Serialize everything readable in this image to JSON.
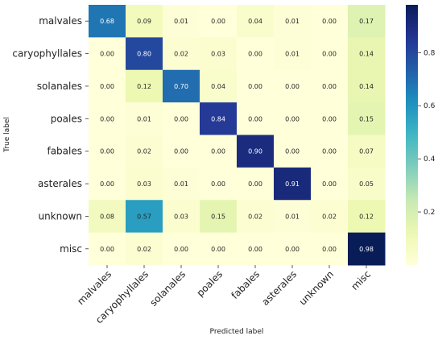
{
  "chart_data": {
    "type": "heatmap",
    "title": "",
    "xlabel": "Predicted label",
    "ylabel": "True label",
    "x_categories": [
      "malvales",
      "caryophyllales",
      "solanales",
      "poales",
      "fabales",
      "asterales",
      "unknown",
      "misc"
    ],
    "y_categories": [
      "malvales",
      "caryophyllales",
      "solanales",
      "poales",
      "fabales",
      "asterales",
      "unknown",
      "misc"
    ],
    "values": [
      [
        0.68,
        0.09,
        0.01,
        0.0,
        0.04,
        0.01,
        0.0,
        0.17
      ],
      [
        0.0,
        0.8,
        0.02,
        0.03,
        0.0,
        0.01,
        0.0,
        0.14
      ],
      [
        0.0,
        0.12,
        0.7,
        0.04,
        0.0,
        0.0,
        0.0,
        0.14
      ],
      [
        0.0,
        0.01,
        0.0,
        0.84,
        0.0,
        0.0,
        0.0,
        0.15
      ],
      [
        0.0,
        0.02,
        0.0,
        0.0,
        0.9,
        0.0,
        0.0,
        0.07
      ],
      [
        0.0,
        0.03,
        0.01,
        0.0,
        0.0,
        0.91,
        0.0,
        0.05
      ],
      [
        0.08,
        0.57,
        0.03,
        0.15,
        0.02,
        0.01,
        0.02,
        0.12
      ],
      [
        0.0,
        0.02,
        0.0,
        0.0,
        0.0,
        0.0,
        0.0,
        0.98
      ]
    ],
    "colorbar": {
      "colormap": "YlGnBu",
      "vmin": 0.0,
      "vmax": 0.98,
      "ticks": [
        0.2,
        0.4,
        0.6,
        0.8
      ],
      "tick_labels": [
        "0.2",
        "0.4",
        "0.6",
        "0.8"
      ]
    },
    "value_format": "2 decimals",
    "grid": false
  }
}
